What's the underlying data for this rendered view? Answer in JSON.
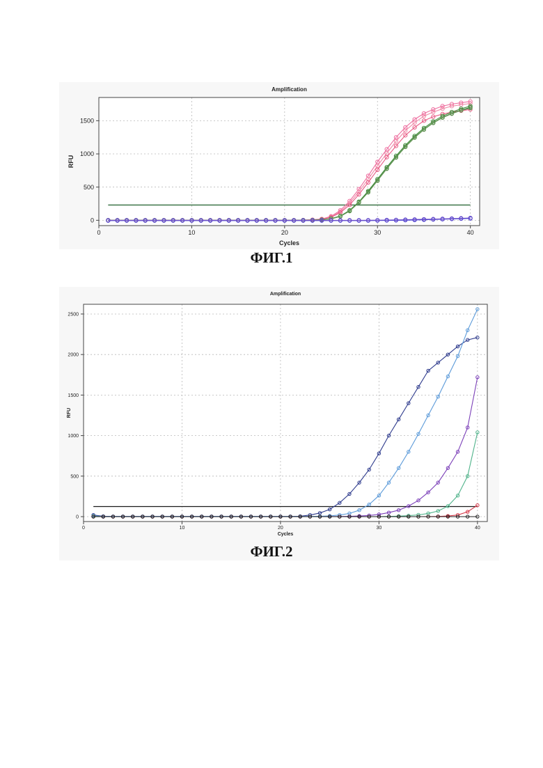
{
  "figures": [
    {
      "caption": "ФИГ.1",
      "chart_data": {
        "type": "line",
        "title": "Amplification",
        "xlabel": "Cycles",
        "ylabel": "RFU",
        "xlim": [
          0,
          41
        ],
        "ylim": [
          -80,
          1850
        ],
        "xticks": [
          0,
          10,
          20,
          30,
          40
        ],
        "yticks": [
          0,
          500,
          1000,
          1500
        ],
        "grid": true,
        "threshold": 230,
        "threshold_color": "#2f6b3a",
        "x": [
          1,
          2,
          3,
          4,
          5,
          6,
          7,
          8,
          9,
          10,
          11,
          12,
          13,
          14,
          15,
          16,
          17,
          18,
          19,
          20,
          21,
          22,
          23,
          24,
          25,
          26,
          27,
          28,
          29,
          30,
          31,
          32,
          33,
          34,
          35,
          36,
          37,
          38,
          39,
          40
        ],
        "series": [
          {
            "color": "#ee6fa0",
            "values": [
              0,
              0,
              0,
              0,
              0,
              0,
              0,
              0,
              0,
              0,
              0,
              0,
              0,
              0,
              0,
              0,
              0,
              0,
              0,
              0,
              0,
              3,
              8,
              20,
              60,
              150,
              290,
              470,
              670,
              880,
              1070,
              1250,
              1400,
              1520,
              1610,
              1670,
              1720,
              1750,
              1770,
              1790
            ]
          },
          {
            "color": "#f08aa8",
            "values": [
              0,
              0,
              0,
              0,
              0,
              0,
              0,
              0,
              0,
              0,
              0,
              0,
              0,
              0,
              0,
              0,
              0,
              0,
              0,
              0,
              0,
              3,
              7,
              18,
              52,
              130,
              260,
              430,
              620,
              820,
              1010,
              1190,
              1350,
              1470,
              1570,
              1630,
              1680,
              1720,
              1740,
              1760
            ]
          },
          {
            "color": "#e85a84",
            "values": [
              0,
              0,
              0,
              0,
              0,
              0,
              0,
              0,
              0,
              0,
              0,
              0,
              0,
              0,
              0,
              0,
              0,
              0,
              0,
              0,
              0,
              2,
              6,
              16,
              45,
              115,
              230,
              390,
              570,
              760,
              950,
              1120,
              1280,
              1400,
              1500,
              1560,
              1600,
              1630,
              1650,
              1670
            ]
          },
          {
            "color": "#3f8f3a",
            "values": [
              0,
              0,
              0,
              0,
              0,
              0,
              0,
              0,
              0,
              0,
              0,
              0,
              0,
              0,
              0,
              0,
              0,
              0,
              0,
              0,
              0,
              1,
              3,
              8,
              25,
              65,
              150,
              280,
              440,
              620,
              800,
              970,
              1130,
              1270,
              1390,
              1490,
              1570,
              1630,
              1680,
              1720
            ]
          },
          {
            "color": "#2e6b2c",
            "values": [
              0,
              0,
              0,
              0,
              0,
              0,
              0,
              0,
              0,
              0,
              0,
              0,
              0,
              0,
              0,
              0,
              0,
              0,
              0,
              0,
              0,
              1,
              3,
              7,
              22,
              60,
              140,
              270,
              425,
              600,
              780,
              950,
              1110,
              1250,
              1370,
              1470,
              1550,
              1610,
              1660,
              1700
            ]
          },
          {
            "color": "#6a9a5a",
            "values": [
              0,
              0,
              0,
              0,
              0,
              0,
              0,
              0,
              0,
              0,
              0,
              0,
              0,
              0,
              0,
              0,
              0,
              0,
              0,
              0,
              0,
              1,
              3,
              7,
              20,
              58,
              138,
              268,
              420,
              595,
              775,
              945,
              1105,
              1245,
              1365,
              1465,
              1545,
              1605,
              1655,
              1690
            ]
          },
          {
            "color": "#3a3ad8",
            "values": [
              -5,
              -5,
              -5,
              -5,
              -5,
              -5,
              -5,
              -5,
              -5,
              -5,
              -5,
              -5,
              -5,
              -5,
              -5,
              -5,
              -5,
              -5,
              -5,
              -5,
              -5,
              -5,
              -5,
              -5,
              -5,
              -5,
              -5,
              -5,
              -4,
              -3,
              -2,
              0,
              2,
              5,
              8,
              12,
              16,
              20,
              24,
              28
            ]
          },
          {
            "color": "#6f4fc8",
            "values": [
              0,
              0,
              0,
              0,
              0,
              0,
              0,
              0,
              0,
              0,
              0,
              0,
              0,
              0,
              0,
              0,
              0,
              0,
              0,
              0,
              0,
              0,
              0,
              0,
              0,
              0,
              0,
              0,
              1,
              2,
              4,
              6,
              9,
              12,
              15,
              18,
              22,
              26,
              30,
              35
            ]
          }
        ]
      }
    },
    {
      "caption": "ФИГ.2",
      "chart_data": {
        "type": "line",
        "title": "Amplification",
        "xlabel": "Cycles",
        "ylabel": "RFU",
        "xlim": [
          0,
          41
        ],
        "ylim": [
          -60,
          2620
        ],
        "xticks": [
          0,
          10,
          20,
          30,
          40
        ],
        "yticks": [
          0,
          500,
          1000,
          1500,
          2000,
          2500
        ],
        "grid": true,
        "threshold": 125,
        "threshold_color": "#1a1a1a",
        "x": [
          1,
          2,
          3,
          4,
          5,
          6,
          7,
          8,
          9,
          10,
          11,
          12,
          13,
          14,
          15,
          16,
          17,
          18,
          19,
          20,
          21,
          22,
          23,
          24,
          25,
          26,
          27,
          28,
          29,
          30,
          31,
          32,
          33,
          34,
          35,
          36,
          37,
          38,
          39,
          40
        ],
        "series": [
          {
            "color": "#2d3a8c",
            "values": [
              20,
              5,
              3,
              3,
              3,
              3,
              3,
              3,
              3,
              3,
              3,
              3,
              3,
              3,
              3,
              3,
              3,
              3,
              3,
              3,
              3,
              5,
              20,
              45,
              90,
              170,
              280,
              420,
              580,
              780,
              1000,
              1200,
              1400,
              1600,
              1800,
              1900,
              2000,
              2100,
              2180,
              2210
            ]
          },
          {
            "color": "#5b9ad9",
            "values": [
              10,
              3,
              2,
              2,
              2,
              2,
              2,
              2,
              2,
              2,
              2,
              2,
              2,
              2,
              2,
              2,
              2,
              2,
              2,
              2,
              2,
              2,
              3,
              5,
              10,
              20,
              40,
              80,
              150,
              260,
              420,
              600,
              800,
              1020,
              1250,
              1480,
              1730,
              1980,
              2300,
              2560
            ]
          },
          {
            "color": "#7b3fb8",
            "values": [
              5,
              0,
              0,
              0,
              0,
              0,
              0,
              0,
              0,
              0,
              0,
              0,
              0,
              0,
              0,
              0,
              0,
              0,
              0,
              0,
              0,
              0,
              0,
              0,
              1,
              2,
              4,
              8,
              15,
              28,
              50,
              80,
              130,
              200,
              300,
              420,
              600,
              800,
              1100,
              1720
            ]
          },
          {
            "color": "#4fb38a",
            "values": [
              5,
              0,
              0,
              0,
              0,
              0,
              0,
              0,
              0,
              0,
              0,
              0,
              0,
              0,
              0,
              0,
              0,
              0,
              0,
              0,
              0,
              0,
              0,
              0,
              0,
              0,
              0,
              0,
              0,
              1,
              3,
              6,
              12,
              22,
              40,
              70,
              130,
              260,
              500,
              1040
            ]
          },
          {
            "color": "#d43a4a",
            "values": [
              0,
              0,
              0,
              0,
              0,
              0,
              0,
              0,
              0,
              0,
              0,
              0,
              0,
              0,
              0,
              0,
              0,
              0,
              0,
              0,
              0,
              0,
              0,
              0,
              0,
              0,
              0,
              0,
              0,
              0,
              0,
              0,
              0,
              0,
              1,
              3,
              8,
              20,
              60,
              140
            ]
          },
          {
            "color": "#222222",
            "values": [
              0,
              0,
              0,
              0,
              0,
              0,
              0,
              0,
              0,
              0,
              0,
              0,
              0,
              0,
              0,
              0,
              0,
              0,
              0,
              0,
              0,
              0,
              0,
              0,
              0,
              0,
              0,
              0,
              0,
              0,
              0,
              0,
              0,
              0,
              0,
              0,
              0,
              0,
              0,
              0
            ]
          }
        ]
      }
    }
  ]
}
